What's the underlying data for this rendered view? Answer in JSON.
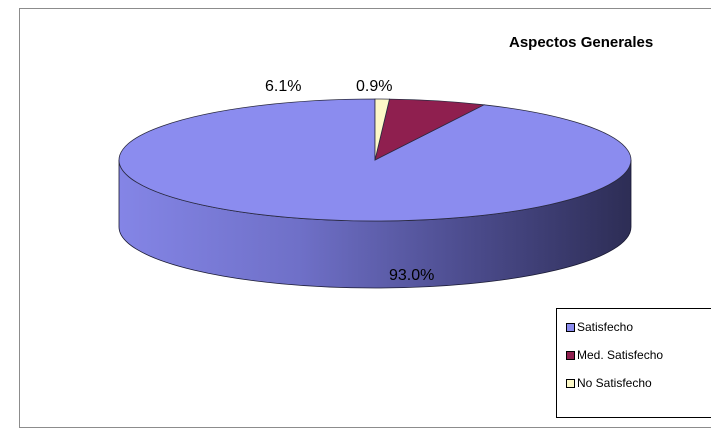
{
  "chart_data": {
    "type": "pie",
    "title": "Aspectos Generales",
    "slices": [
      {
        "label": "Satisfecho",
        "value": 93.0,
        "display": "93.0%",
        "color": "#8b8cef",
        "side_dark": "#2f2f5a",
        "side_light": "#7f80d9"
      },
      {
        "label": "Med. Satisfecho",
        "value": 6.1,
        "display": "6.1%",
        "color": "#8f1f4f",
        "side_dark": "#4e0f2b",
        "side_light": "#7a1a44"
      },
      {
        "label": "No Satisfecho",
        "value": 0.9,
        "display": "0.9%",
        "color": "#fdf9c8",
        "side_dark": "#b9b58a",
        "side_light": "#e8e4b4"
      }
    ],
    "legend_position": "bottom-right",
    "is_3d": true
  }
}
